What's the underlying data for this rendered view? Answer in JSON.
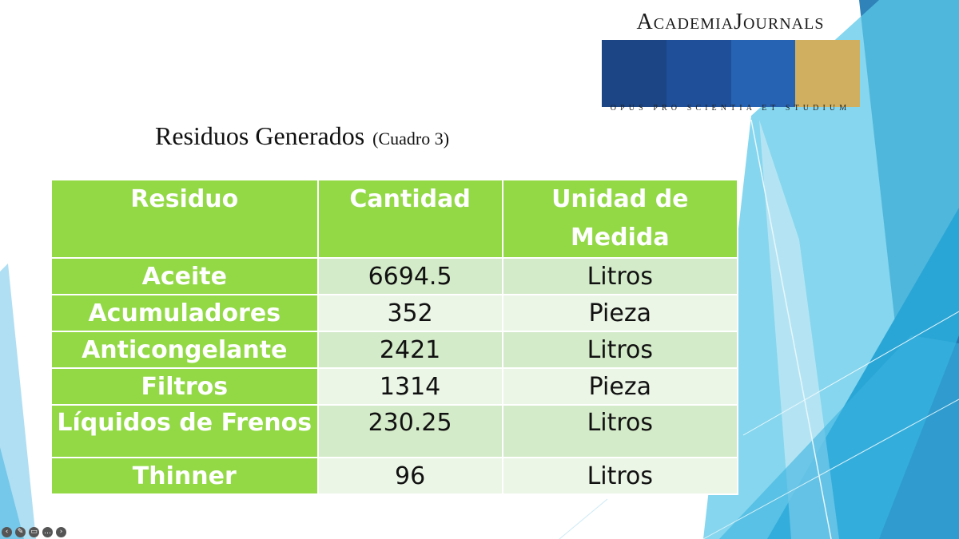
{
  "logo": {
    "name_parts": [
      "Academia",
      "Journals"
    ],
    "motto": "OPUS PRO SCIENTIA ET STUDIUM",
    "bar_colors": [
      "#1b4585",
      "#1e4f98",
      "#2763b3",
      "#d0b060"
    ]
  },
  "title": {
    "main": "Residuos Generados",
    "sub": "(Cuadro 3)"
  },
  "table": {
    "headers": [
      "Residuo",
      "Cantidad",
      "Unidad de Medida"
    ],
    "rows": [
      {
        "residuo": "Aceite",
        "cantidad": "6694.5",
        "unidad": "Litros"
      },
      {
        "residuo": "Acumuladores",
        "cantidad": "352",
        "unidad": "Pieza"
      },
      {
        "residuo": "Anticongelante",
        "cantidad": "2421",
        "unidad": "Litros"
      },
      {
        "residuo": "Filtros",
        "cantidad": "1314",
        "unidad": "Pieza"
      },
      {
        "residuo": "Líquidos de Frenos",
        "cantidad": "230.25",
        "unidad": "Litros"
      },
      {
        "residuo": "Thinner",
        "cantidad": "96",
        "unidad": "Litros"
      }
    ]
  },
  "colors": {
    "header_green": "#92d945",
    "row_light": "#ebf6e6",
    "row_mid": "#d4ebc9"
  },
  "controls": [
    {
      "icon": "previous-slide-icon",
      "glyph": "‹"
    },
    {
      "icon": "pen-icon",
      "glyph": "✎"
    },
    {
      "icon": "captions-icon",
      "glyph": "▭"
    },
    {
      "icon": "more-options-icon",
      "glyph": "…"
    },
    {
      "icon": "next-slide-icon",
      "glyph": "›"
    }
  ]
}
